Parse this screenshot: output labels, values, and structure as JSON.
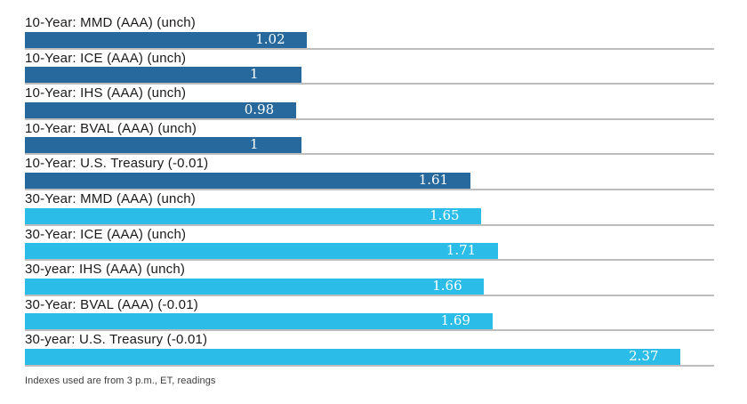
{
  "chart_data": {
    "type": "bar",
    "orientation": "horizontal",
    "title": "",
    "xlabel": "",
    "ylabel": "",
    "xlim": [
      0,
      2.49
    ],
    "grid": "per-row baseline only",
    "legend": "none",
    "value_labels_position": "inside-bar-near-end",
    "colors": {
      "ten_year_dark_blue": "#27699c",
      "thirty_year_light_blue": "#2bbde8",
      "row_baseline_gray": "#bdbdbd",
      "value_label_text": "#ffffff",
      "category_label_text": "#1a1a1a"
    },
    "bars": [
      {
        "label": "10-Year: MMD (AAA) (unch)",
        "value": 1.02,
        "value_label": "1.02",
        "color": "#27699c"
      },
      {
        "label": "10-Year: ICE (AAA) (unch)",
        "value": 1.0,
        "value_label": "1",
        "color": "#27699c"
      },
      {
        "label": "10-Year: IHS (AAA) (unch)",
        "value": 0.98,
        "value_label": "0.98",
        "color": "#27699c"
      },
      {
        "label": "10-Year: BVAL (AAA) (unch)",
        "value": 1.0,
        "value_label": "1",
        "color": "#27699c"
      },
      {
        "label": "10-Year: U.S. Treasury (-0.01)",
        "value": 1.61,
        "value_label": "1.61",
        "color": "#27699c"
      },
      {
        "label": "30-Year: MMD (AAA) (unch)",
        "value": 1.65,
        "value_label": "1.65",
        "color": "#2bbde8"
      },
      {
        "label": "30-Year: ICE (AAA) (unch)",
        "value": 1.71,
        "value_label": "1.71",
        "color": "#2bbde8"
      },
      {
        "label": "30-year: IHS (AAA) (unch)",
        "value": 1.66,
        "value_label": "1.66",
        "color": "#2bbde8"
      },
      {
        "label": "30-Year: BVAL (AAA) (-0.01)",
        "value": 1.69,
        "value_label": "1.69",
        "color": "#2bbde8"
      },
      {
        "label": "30-year: U.S. Treasury (-0.01)",
        "value": 2.37,
        "value_label": "2.37",
        "color": "#2bbde8"
      }
    ],
    "footnote": "Indexes used are from 3 p.m., ET, readings"
  }
}
